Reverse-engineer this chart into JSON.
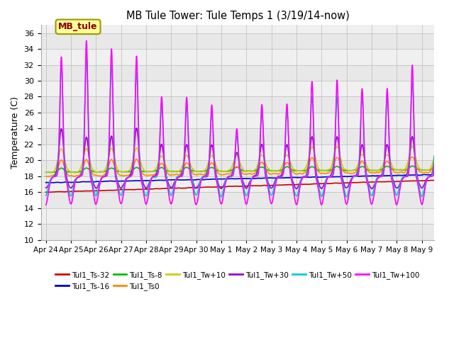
{
  "title": "MB Tule Tower: Tule Temps 1 (3/19/14-now)",
  "ylabel": "Temperature (C)",
  "ylim": [
    10,
    37
  ],
  "yticks": [
    10,
    12,
    14,
    16,
    18,
    20,
    22,
    24,
    26,
    28,
    30,
    32,
    34,
    36
  ],
  "series": [
    {
      "label": "Tul1_Ts-32",
      "color": "#cc0000",
      "lw": 1.2
    },
    {
      "label": "Tul1_Ts-16",
      "color": "#0000cc",
      "lw": 1.2
    },
    {
      "label": "Tul1_Ts-8",
      "color": "#00bb00",
      "lw": 1.2
    },
    {
      "label": "Tul1_Ts0",
      "color": "#ff8800",
      "lw": 1.2
    },
    {
      "label": "Tul1_Tw+10",
      "color": "#cccc00",
      "lw": 1.2
    },
    {
      "label": "Tul1_Tw+30",
      "color": "#9900cc",
      "lw": 1.2
    },
    {
      "label": "Tul1_Tw+50",
      "color": "#00cccc",
      "lw": 1.2
    },
    {
      "label": "Tul1_Tw+100",
      "color": "#ff00ff",
      "lw": 1.2
    }
  ],
  "xtick_labels": [
    "Apr 24",
    "Apr 25",
    "Apr 26",
    "Apr 27",
    "Apr 28",
    "Apr 29",
    "Apr 30",
    "May 1",
    "May 2",
    "May 3",
    "May 4",
    "May 5",
    "May 6",
    "May 7",
    "May 8",
    "May 9"
  ],
  "bg_band_colors": [
    "#e8e8e8",
    "#f0f0f0"
  ],
  "legend_box_label": "MB_tule",
  "legend_box_color": "#ffff99",
  "legend_box_edge": "#999900"
}
